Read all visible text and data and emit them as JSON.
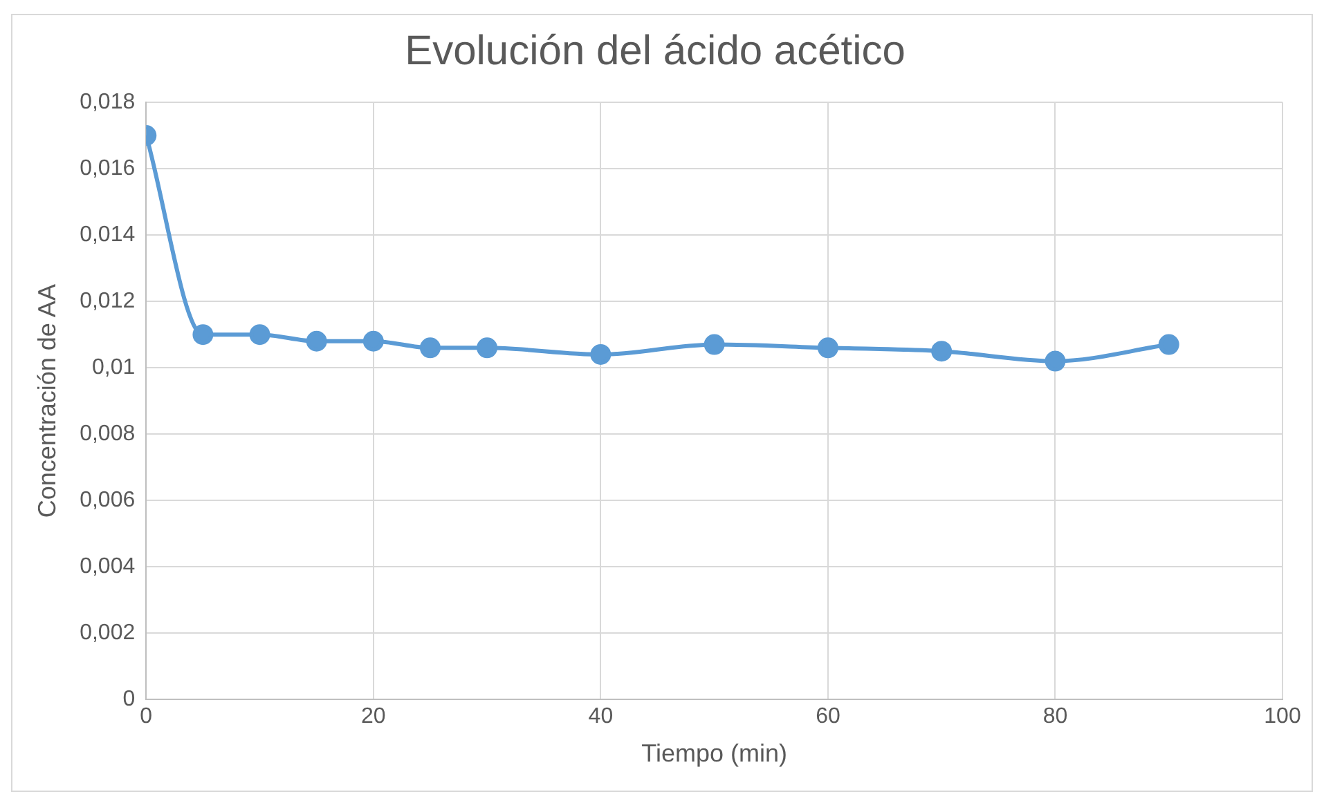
{
  "chart_data": {
    "type": "line",
    "title": "Evolución del ácido acético",
    "xlabel": "Tiempo (min)",
    "ylabel": "Concentración de AA",
    "x": [
      0,
      5,
      10,
      15,
      20,
      25,
      30,
      40,
      50,
      60,
      70,
      80,
      90
    ],
    "series": [
      {
        "color": "#5b9bd5",
        "values": [
          0.017,
          0.011,
          0.011,
          0.0108,
          0.0108,
          0.0106,
          0.0106,
          0.0104,
          0.0107,
          0.0106,
          0.0105,
          0.0102,
          0.0107
        ]
      }
    ],
    "xlim": [
      0,
      100
    ],
    "xticks": [
      0,
      20,
      40,
      60,
      80,
      100
    ],
    "ylim": [
      0,
      0.018
    ],
    "yticks": [
      0,
      {
        "value": 0.002,
        "label": "0,002"
      },
      {
        "value": 0.004,
        "label": "0,004"
      },
      {
        "value": 0.006,
        "label": "0,006"
      },
      {
        "value": 0.008,
        "label": "0,008"
      },
      {
        "value": 0.01,
        "label": "0,01"
      },
      {
        "value": 0.012,
        "label": "0,012"
      },
      {
        "value": 0.014,
        "label": "0,014"
      },
      {
        "value": 0.016,
        "label": "0,016"
      },
      {
        "value": 0.018,
        "label": "0,018"
      }
    ],
    "grid": true,
    "marker": "circle",
    "line_style": "solid",
    "legend": false
  }
}
